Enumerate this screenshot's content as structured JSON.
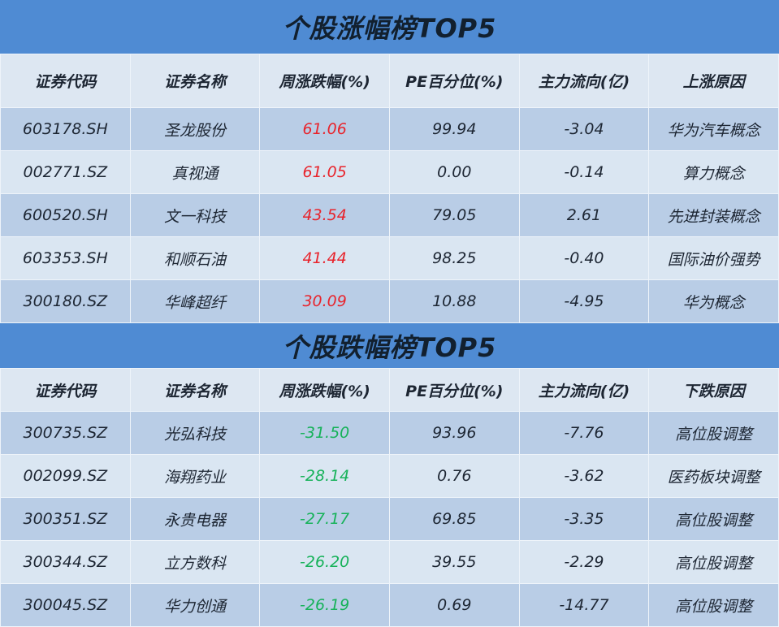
{
  "gainers": {
    "title": "个股涨幅榜TOP5",
    "headers": [
      "证券代码",
      "证券名称",
      "周涨跌幅(%)",
      "PE百分位(%)",
      "主力流向(亿)",
      "上涨原因"
    ],
    "rows": [
      [
        "603178.SH",
        "圣龙股份",
        "61.06",
        "99.94",
        "-3.04",
        "华为汽车概念"
      ],
      [
        "002771.SZ",
        "真视通",
        "61.05",
        "0.00",
        "-0.14",
        "算力概念"
      ],
      [
        "600520.SH",
        "文一科技",
        "43.54",
        "79.05",
        "2.61",
        "先进封装概念"
      ],
      [
        "603353.SH",
        "和顺石油",
        "41.44",
        "98.25",
        "-0.40",
        "国际油价强势"
      ],
      [
        "300180.SZ",
        "华峰超纤",
        "30.09",
        "10.88",
        "-4.95",
        "华为概念"
      ]
    ]
  },
  "losers": {
    "title": "个股跌幅榜TOP5",
    "headers": [
      "证券代码",
      "证券名称",
      "周涨跌幅(%)",
      "PE百分位(%)",
      "主力流向(亿)",
      "下跌原因"
    ],
    "rows": [
      [
        "300735.SZ",
        "光弘科技",
        "-31.50",
        "93.96",
        "-7.76",
        "高位股调整"
      ],
      [
        "002099.SZ",
        "海翔药业",
        "-28.14",
        "0.76",
        "-3.62",
        "医药板块调整"
      ],
      [
        "300351.SZ",
        "永贵电器",
        "-27.17",
        "69.85",
        "-3.35",
        "高位股调整"
      ],
      [
        "300344.SZ",
        "立方数科",
        "-26.20",
        "39.55",
        "-2.29",
        "高位股调整"
      ],
      [
        "300045.SZ",
        "华力创通",
        "-26.19",
        "0.69",
        "-14.77",
        "高位股调整"
      ]
    ]
  },
  "colors": {
    "up": "#e8242c",
    "down": "#17b25a",
    "title_bar": "#4f8bd3"
  }
}
